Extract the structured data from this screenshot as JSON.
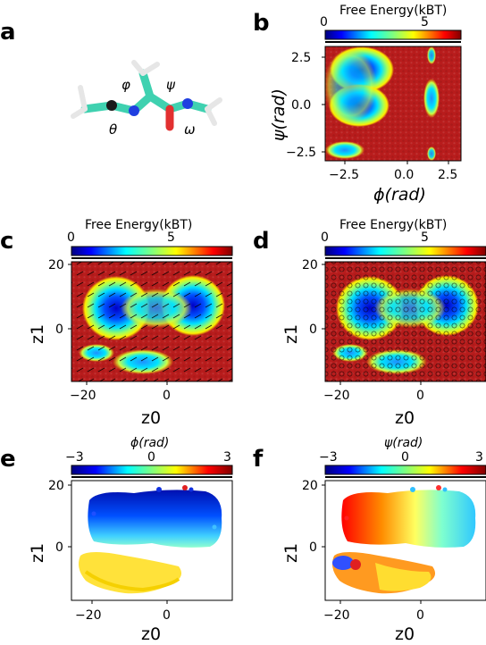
{
  "panels": {
    "a": {
      "label": "a",
      "angles": [
        "φ",
        "ψ",
        "θ",
        "ω"
      ]
    },
    "b": {
      "label": "b",
      "colorbar_title": "Free Energy",
      "colorbar_unit": "(kBT)",
      "colorbar_ticks": [
        "0",
        "5"
      ],
      "xlabel": "ϕ(rad)",
      "ylabel": "ψ(rad)",
      "xticks": [
        "−2.5",
        "0.0",
        "2.5"
      ],
      "yticks": [
        "2.5",
        "0.0",
        "−2.5"
      ]
    },
    "c": {
      "label": "c",
      "colorbar_title": "Free Energy",
      "colorbar_unit": "(kBT)",
      "colorbar_ticks": [
        "0",
        "5"
      ],
      "xlabel": "z0",
      "ylabel": "z1",
      "xticks": [
        "−20",
        "0"
      ],
      "yticks": [
        "20",
        "0"
      ]
    },
    "d": {
      "label": "d",
      "colorbar_title": "Free Energy",
      "colorbar_unit": "(kBT)",
      "colorbar_ticks": [
        "0",
        "5"
      ],
      "xlabel": "z0",
      "ylabel": "z1",
      "xticks": [
        "−20",
        "0"
      ],
      "yticks": [
        "20",
        "0"
      ]
    },
    "e": {
      "label": "e",
      "colorbar_title": "ϕ(rad)",
      "colorbar_ticks": [
        "−3",
        "0",
        "3"
      ],
      "xlabel": "z0",
      "ylabel": "z1",
      "xticks": [
        "−20",
        "0"
      ],
      "yticks": [
        "20",
        "0"
      ]
    },
    "f": {
      "label": "f",
      "colorbar_title": "ψ(rad)",
      "colorbar_ticks": [
        "−3",
        "0",
        "3"
      ],
      "xlabel": "z0",
      "ylabel": "z1",
      "xticks": [
        "−20",
        "0"
      ],
      "yticks": [
        "20",
        "0"
      ]
    }
  },
  "colors": {
    "high_energy": "#b81c1c",
    "jet": [
      "#00007f",
      "#0000ff",
      "#007fff",
      "#00ffff",
      "#7fff7f",
      "#ffff00",
      "#ff7f00",
      "#ff0000",
      "#7f0000"
    ]
  }
}
